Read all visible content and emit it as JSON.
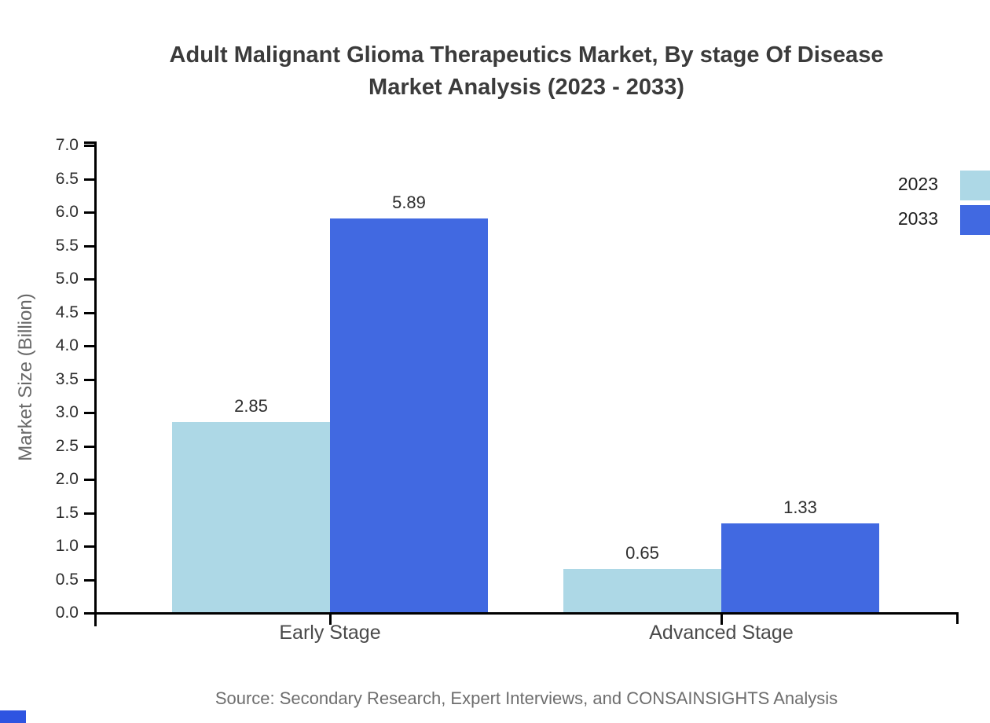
{
  "header": {
    "title_line1": "Adult Malignant Glioma Therapeutics Market, By stage Of Disease",
    "title_line2": "Market Analysis (2023 - 2033)"
  },
  "chart_data": {
    "type": "bar",
    "title": "Adult Malignant Glioma Therapeutics Market, By stage Of Disease Market Analysis (2023 - 2033)",
    "categories": [
      "Early Stage",
      "Advanced Stage"
    ],
    "series": [
      {
        "name": "2023",
        "color": "#ADD8E6",
        "values": [
          2.85,
          0.65
        ]
      },
      {
        "name": "2033",
        "color": "#4169E1",
        "values": [
          5.89,
          1.33
        ]
      }
    ],
    "xlabel": "",
    "ylabel": "Market Size (Billion)",
    "ylim": [
      0,
      7
    ],
    "ytick_step": 0.5,
    "ytick_decimals": 1,
    "value_label_decimals": 2,
    "grid": false,
    "legend_position": "top-right",
    "value_labels_shown": true
  },
  "footer": {
    "source": "Source: Secondary Research, Expert Interviews, and CONSAINSIGHTS Analysis"
  },
  "colors": {
    "axis": "#000000",
    "title_text": "#3b3b3b",
    "tick_text": "#2d2d2d",
    "category_text": "#4a4a4a",
    "value_label_text": "#2e2e2e",
    "ylabel_text": "#686868",
    "legend_text": "#1f1f1f",
    "source_text": "#6e6e6e",
    "logo": "#2e54e1",
    "background": "#ffffff"
  }
}
